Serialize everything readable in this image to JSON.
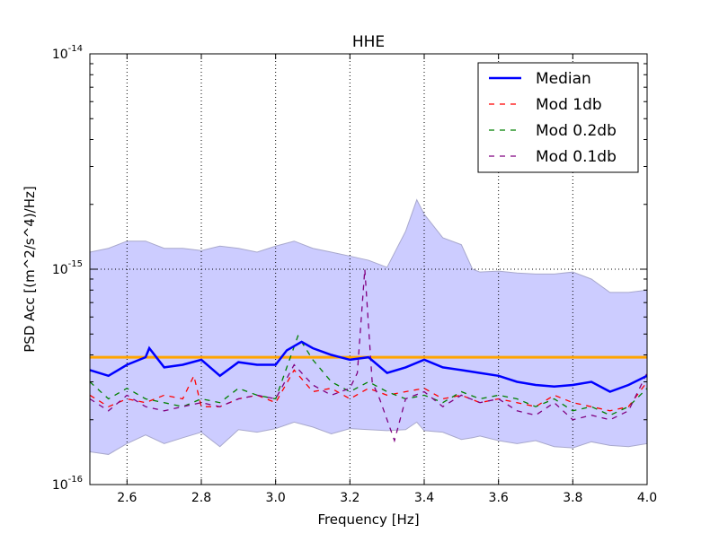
{
  "chart_data": {
    "type": "line",
    "title": "HHE",
    "xlabel": "Frequency [Hz]",
    "ylabel": "PSD Acc [(m^2/s^4)/Hz]",
    "xscale": "linear",
    "yscale": "log",
    "xlim": [
      2.5,
      4.0
    ],
    "ylim": [
      1e-16,
      1e-14
    ],
    "x_ticks": [
      2.6,
      2.8,
      3.0,
      3.2,
      3.4,
      3.6,
      3.8,
      4.0
    ],
    "x_tick_labels": [
      "2.6",
      "2.8",
      "3.0",
      "3.2",
      "3.4",
      "3.6",
      "3.8",
      "4.0"
    ],
    "y_ticks": [
      {
        "value": 1e-16,
        "base": "10",
        "exp": "-16"
      },
      {
        "value": 1e-15,
        "base": "10",
        "exp": "-15"
      },
      {
        "value": 1e-14,
        "base": "10",
        "exp": "-14"
      }
    ],
    "grid": true,
    "legend_position": "top-right",
    "colors": {
      "band_fill": "#ccccff",
      "band_edge": "#a8a8cc",
      "median": "#0000ff",
      "reference": "#ffa500",
      "mod1": "#ff0000",
      "mod02": "#008000",
      "mod01": "#800080"
    },
    "reference_line": {
      "value": 3.9e-16
    },
    "band": {
      "x": [
        2.5,
        2.55,
        2.6,
        2.65,
        2.7,
        2.75,
        2.8,
        2.85,
        2.9,
        2.95,
        3.0,
        3.05,
        3.1,
        3.15,
        3.2,
        3.25,
        3.3,
        3.35,
        3.38,
        3.4,
        3.45,
        3.5,
        3.53,
        3.55,
        3.6,
        3.65,
        3.7,
        3.75,
        3.8,
        3.85,
        3.9,
        3.95,
        4.0
      ],
      "upper": [
        1.2e-15,
        1.25e-15,
        1.35e-15,
        1.35e-15,
        1.25e-15,
        1.25e-15,
        1.22e-15,
        1.28e-15,
        1.25e-15,
        1.2e-15,
        1.28e-15,
        1.35e-15,
        1.25e-15,
        1.2e-15,
        1.15e-15,
        1.1e-15,
        1.02e-15,
        1.5e-15,
        2.1e-15,
        1.8e-15,
        1.4e-15,
        1.3e-15,
        1e-15,
        9.7e-16,
        9.8e-16,
        9.6e-16,
        9.5e-16,
        9.5e-16,
        9.7e-16,
        9e-16,
        7.8e-16,
        7.8e-16,
        8e-16
      ],
      "lower": [
        1.42e-16,
        1.38e-16,
        1.55e-16,
        1.7e-16,
        1.55e-16,
        1.65e-16,
        1.75e-16,
        1.5e-16,
        1.8e-16,
        1.75e-16,
        1.82e-16,
        1.95e-16,
        1.85e-16,
        1.72e-16,
        1.82e-16,
        1.8e-16,
        1.78e-16,
        1.8e-16,
        1.95e-16,
        1.78e-16,
        1.75e-16,
        1.62e-16,
        1.65e-16,
        1.68e-16,
        1.6e-16,
        1.55e-16,
        1.6e-16,
        1.5e-16,
        1.48e-16,
        1.58e-16,
        1.52e-16,
        1.5e-16,
        1.55e-16
      ]
    },
    "series": [
      {
        "name": "Median",
        "style": "solid",
        "color_key": "median",
        "x": [
          2.5,
          2.55,
          2.6,
          2.65,
          2.66,
          2.7,
          2.75,
          2.8,
          2.85,
          2.9,
          2.95,
          3.0,
          3.03,
          3.07,
          3.1,
          3.15,
          3.2,
          3.25,
          3.3,
          3.35,
          3.4,
          3.45,
          3.5,
          3.55,
          3.6,
          3.65,
          3.7,
          3.75,
          3.8,
          3.85,
          3.9,
          3.95,
          4.0
        ],
        "values": [
          3.4e-16,
          3.2e-16,
          3.6e-16,
          3.9e-16,
          4.3e-16,
          3.5e-16,
          3.6e-16,
          3.8e-16,
          3.2e-16,
          3.7e-16,
          3.6e-16,
          3.6e-16,
          4.2e-16,
          4.6e-16,
          4.3e-16,
          4e-16,
          3.8e-16,
          3.9e-16,
          3.3e-16,
          3.5e-16,
          3.8e-16,
          3.5e-16,
          3.4e-16,
          3.3e-16,
          3.2e-16,
          3e-16,
          2.9e-16,
          2.85e-16,
          2.9e-16,
          3e-16,
          2.7e-16,
          2.9e-16,
          3.2e-16
        ]
      },
      {
        "name": "Mod 1db",
        "style": "dashed",
        "color_key": "mod1",
        "x": [
          2.5,
          2.55,
          2.6,
          2.65,
          2.7,
          2.75,
          2.78,
          2.8,
          2.85,
          2.9,
          2.95,
          3.0,
          3.05,
          3.1,
          3.15,
          3.2,
          3.25,
          3.3,
          3.35,
          3.4,
          3.45,
          3.5,
          3.55,
          3.6,
          3.65,
          3.7,
          3.75,
          3.8,
          3.85,
          3.9,
          3.95,
          4.0
        ],
        "values": [
          2.6e-16,
          2.3e-16,
          2.5e-16,
          2.4e-16,
          2.6e-16,
          2.5e-16,
          3.2e-16,
          2.3e-16,
          2.3e-16,
          2.5e-16,
          2.6e-16,
          2.4e-16,
          3.4e-16,
          2.7e-16,
          2.8e-16,
          2.5e-16,
          2.8e-16,
          2.6e-16,
          2.7e-16,
          2.8e-16,
          2.5e-16,
          2.6e-16,
          2.4e-16,
          2.5e-16,
          2.4e-16,
          2.3e-16,
          2.6e-16,
          2.4e-16,
          2.3e-16,
          2.2e-16,
          2.3e-16,
          3e-16
        ]
      },
      {
        "name": "Mod 0.2db",
        "style": "dashed",
        "color_key": "mod02",
        "x": [
          2.5,
          2.55,
          2.6,
          2.65,
          2.7,
          2.75,
          2.8,
          2.85,
          2.9,
          2.95,
          3.0,
          3.03,
          3.06,
          3.1,
          3.15,
          3.2,
          3.25,
          3.3,
          3.35,
          3.4,
          3.45,
          3.5,
          3.55,
          3.6,
          3.65,
          3.7,
          3.75,
          3.8,
          3.85,
          3.9,
          3.95,
          4.0
        ],
        "values": [
          3e-16,
          2.5e-16,
          2.8e-16,
          2.5e-16,
          2.4e-16,
          2.3e-16,
          2.5e-16,
          2.4e-16,
          2.8e-16,
          2.6e-16,
          2.5e-16,
          3.5e-16,
          4.9e-16,
          3.8e-16,
          3e-16,
          2.7e-16,
          3e-16,
          2.7e-16,
          2.5e-16,
          2.6e-16,
          2.4e-16,
          2.7e-16,
          2.5e-16,
          2.6e-16,
          2.5e-16,
          2.3e-16,
          2.5e-16,
          2.2e-16,
          2.3e-16,
          2.1e-16,
          2.3e-16,
          2.8e-16
        ]
      },
      {
        "name": "Mod 0.1db",
        "style": "dashed",
        "color_key": "mod01",
        "x": [
          2.5,
          2.55,
          2.6,
          2.65,
          2.7,
          2.75,
          2.8,
          2.85,
          2.9,
          2.95,
          3.0,
          3.05,
          3.1,
          3.15,
          3.2,
          3.22,
          3.24,
          3.26,
          3.28,
          3.3,
          3.32,
          3.35,
          3.4,
          3.45,
          3.5,
          3.55,
          3.6,
          3.65,
          3.7,
          3.75,
          3.8,
          3.85,
          3.9,
          3.95,
          4.0
        ],
        "values": [
          2.5e-16,
          2.2e-16,
          2.6e-16,
          2.3e-16,
          2.2e-16,
          2.3e-16,
          2.4e-16,
          2.3e-16,
          2.5e-16,
          2.6e-16,
          2.5e-16,
          3.6e-16,
          2.9e-16,
          2.6e-16,
          2.8e-16,
          3.3e-16,
          1e-15,
          3e-16,
          2.5e-16,
          2e-16,
          1.6e-16,
          2.5e-16,
          2.7e-16,
          2.3e-16,
          2.6e-16,
          2.4e-16,
          2.5e-16,
          2.2e-16,
          2.1e-16,
          2.4e-16,
          2e-16,
          2.1e-16,
          2e-16,
          2.2e-16,
          3.3e-16
        ]
      }
    ],
    "legend": [
      {
        "label": "Median",
        "color_key": "median",
        "style": "solid"
      },
      {
        "label": "Mod 1db",
        "color_key": "mod1",
        "style": "dashed"
      },
      {
        "label": "Mod 0.2db",
        "color_key": "mod02",
        "style": "dashed"
      },
      {
        "label": "Mod 0.1db",
        "color_key": "mod01",
        "style": "dashed"
      }
    ]
  }
}
